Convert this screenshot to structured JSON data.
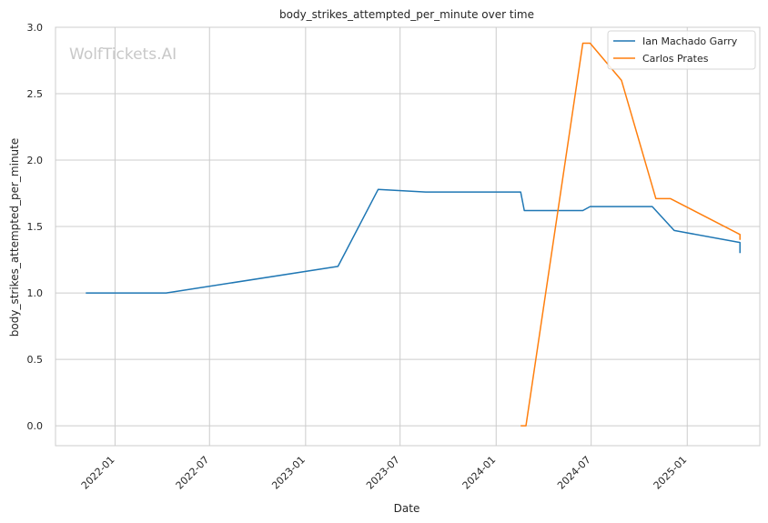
{
  "chart_data": {
    "type": "line",
    "title": "body_strikes_attempted_per_minute over time",
    "xlabel": "Date",
    "ylabel": "body_strikes_attempted_per_minute",
    "watermark": "WolfTickets.AI",
    "x_ticks": [
      "2022-01",
      "2022-07",
      "2023-01",
      "2023-07",
      "2024-01",
      "2024-07",
      "2025-01"
    ],
    "y_ticks": [
      "0.0",
      "0.5",
      "1.0",
      "1.5",
      "2.0",
      "2.5",
      "3.0"
    ],
    "xlim": [
      "2021-09-09",
      "2025-05-20"
    ],
    "ylim": [
      -0.15,
      3.0
    ],
    "grid": true,
    "legend_position": "top-right",
    "series": [
      {
        "name": "Ian Machado Garry",
        "color": "#1f77b4",
        "points": [
          [
            "2021-11-06",
            1.0
          ],
          [
            "2022-04-09",
            1.0
          ],
          [
            "2023-03-04",
            1.2
          ],
          [
            "2023-05-20",
            1.78
          ],
          [
            "2023-08-19",
            1.76
          ],
          [
            "2024-02-17",
            1.76
          ],
          [
            "2024-02-24",
            1.62
          ],
          [
            "2024-06-15",
            1.62
          ],
          [
            "2024-06-29",
            1.65
          ],
          [
            "2024-10-26",
            1.65
          ],
          [
            "2024-12-07",
            1.47
          ],
          [
            "2025-04-12",
            1.38
          ],
          [
            "2025-04-12",
            1.3
          ]
        ]
      },
      {
        "name": "Carlos Prates",
        "color": "#ff7f0e",
        "points": [
          [
            "2024-02-17",
            0.0
          ],
          [
            "2024-02-27",
            0.0
          ],
          [
            "2024-06-15",
            2.88
          ],
          [
            "2024-06-29",
            2.88
          ],
          [
            "2024-08-28",
            2.6
          ],
          [
            "2024-11-02",
            1.71
          ],
          [
            "2024-11-30",
            1.71
          ],
          [
            "2025-04-12",
            1.44
          ],
          [
            "2025-04-12",
            1.4
          ]
        ]
      }
    ]
  }
}
